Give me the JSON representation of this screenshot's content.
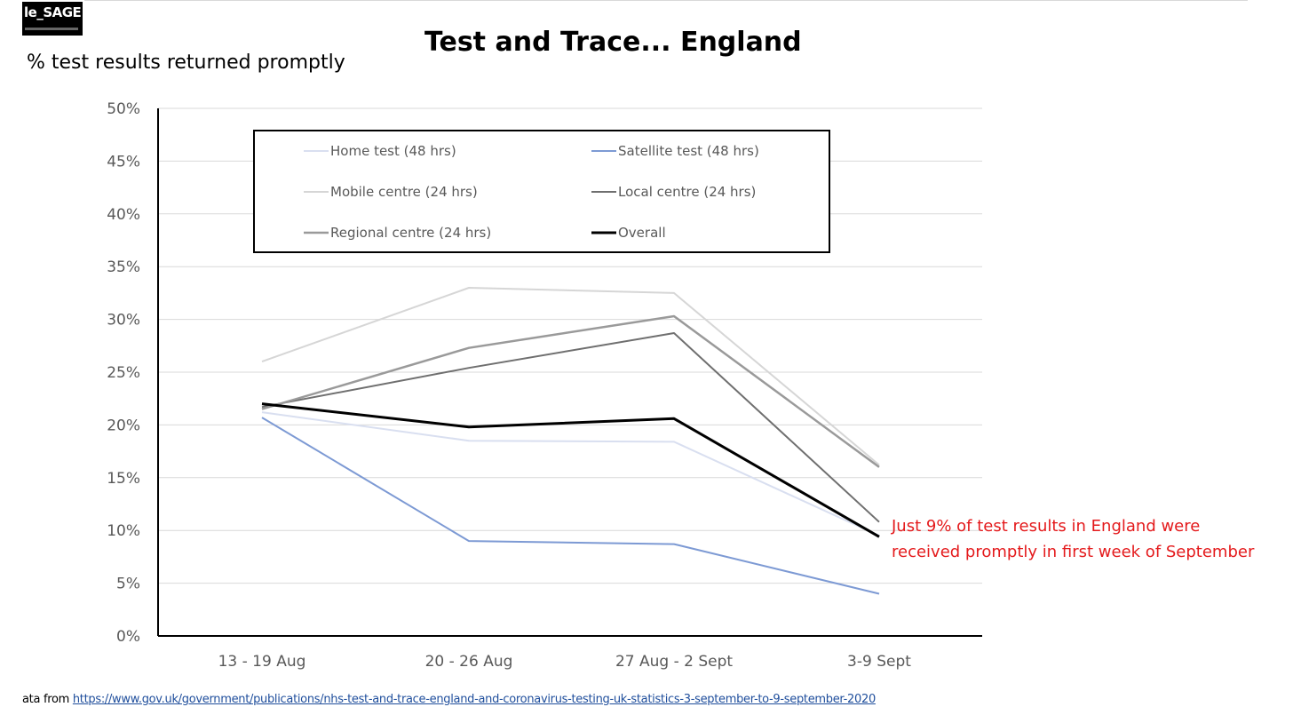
{
  "logo": {
    "text": "le_SAGE"
  },
  "page": {
    "title": "Test and Trace... England",
    "source_prefix": "ata from",
    "source_url": "https://www.gov.uk/government/publications/nhs-test-and-trace-england-and-coronavirus-testing-uk-statistics-3-september-to-9-september-2020"
  },
  "chart_data": {
    "type": "line",
    "title": "Test and Trace... England",
    "ylabel": "% test results returned promptly",
    "xlabel": "",
    "categories": [
      "13 - 19 Aug",
      "20 - 26 Aug",
      "27 Aug - 2 Sept",
      "3-9 Sept"
    ],
    "ylim": [
      0,
      50
    ],
    "yticks": [
      "0%",
      "5%",
      "10%",
      "15%",
      "20%",
      "25%",
      "30%",
      "35%",
      "40%",
      "45%",
      "50%"
    ],
    "grid": true,
    "legend_position": "top",
    "series": [
      {
        "name": "Home test (48 hrs)",
        "color": "#d9dff0",
        "width": 2,
        "values": [
          21.2,
          18.5,
          18.4,
          9.5
        ]
      },
      {
        "name": "Satellite test (48 hrs)",
        "color": "#7d9ad4",
        "width": 2,
        "values": [
          20.7,
          9.0,
          8.7,
          4.0
        ]
      },
      {
        "name": "Mobile centre (24 hrs)",
        "color": "#d6d6d6",
        "width": 2,
        "values": [
          26.0,
          33.0,
          32.5,
          16.2
        ]
      },
      {
        "name": "Local centre (24 hrs)",
        "color": "#6f6f6f",
        "width": 2,
        "values": [
          21.7,
          25.4,
          28.7,
          10.8
        ]
      },
      {
        "name": "Regional centre (24 hrs)",
        "color": "#9a9a9a",
        "width": 2.5,
        "values": [
          21.5,
          27.3,
          30.3,
          16.0
        ]
      },
      {
        "name": "Overall",
        "color": "#000000",
        "width": 3,
        "values": [
          22.0,
          19.8,
          20.6,
          9.4
        ]
      }
    ],
    "annotation": {
      "lines": [
        "Just 9% of test results in England were",
        "received promptly in first week of September"
      ],
      "color": "#e41a1c"
    }
  }
}
